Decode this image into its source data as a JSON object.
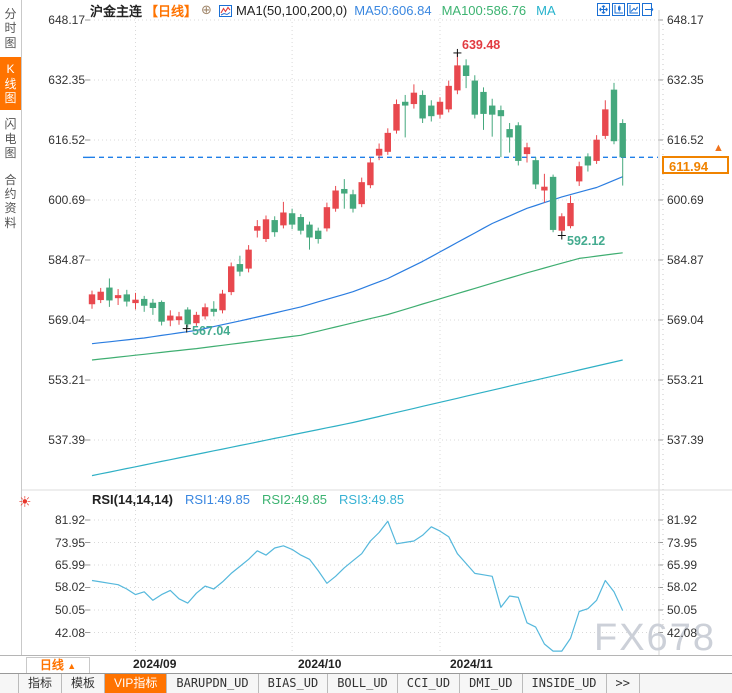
{
  "header": {
    "symbol": "沪金主连",
    "period_tag": "【日线】",
    "plus_icon": "⊕",
    "ma_group": "MA1(50,100,200,0)",
    "ma_values": [
      {
        "label": "MA50:606.84",
        "color": "#3a87e0"
      },
      {
        "label": "MA100:586.76",
        "color": "#3cb371"
      },
      {
        "label": "MA",
        "color": "#26b3cd"
      }
    ]
  },
  "sidebar": {
    "items": [
      {
        "label": "分时图",
        "active": false
      },
      {
        "label": "K线图",
        "active": true
      },
      {
        "label": "闪电图",
        "active": false
      },
      {
        "label": "合约资料",
        "active": false
      }
    ]
  },
  "toolbar_icons": [
    "pan-icon",
    "axis-candle-icon",
    "axis-trend-icon",
    "exit-chart-icon"
  ],
  "main_axis": {
    "labels": [
      "648.17",
      "632.35",
      "616.52",
      "600.69",
      "584.87",
      "569.04",
      "553.21",
      "537.39"
    ]
  },
  "rsi": {
    "title": "RSI(14,14,14)",
    "values": [
      {
        "label": "RSI1:49.85",
        "color": "#3a87e0"
      },
      {
        "label": "RSI2:49.85",
        "color": "#3cb371"
      },
      {
        "label": "RSI3:49.85",
        "color": "#38b2d4"
      }
    ],
    "axis_labels": [
      "81.92",
      "73.95",
      "65.99",
      "58.02",
      "50.05",
      "42.08"
    ]
  },
  "price_marker": {
    "value": "611.94",
    "arrow": "▲"
  },
  "chart_labels": {
    "high": "639.48",
    "low": "567.04",
    "swing_low": "592.12"
  },
  "xaxis": {
    "period_label": "日线",
    "period_arrow": "▲",
    "dates": [
      "2024/09",
      "2024/10",
      "2024/11"
    ]
  },
  "tabs": [
    {
      "label": "指标",
      "active": false
    },
    {
      "label": "模板",
      "active": false
    },
    {
      "label": "VIP指标",
      "active": true
    },
    {
      "label": "BARUPDN_UD",
      "active": false
    },
    {
      "label": "BIAS_UD",
      "active": false
    },
    {
      "label": "BOLL_UD",
      "active": false
    },
    {
      "label": "CCI_UD",
      "active": false
    },
    {
      "label": "DMI_UD",
      "active": false
    },
    {
      "label": "INSIDE_UD",
      "active": false
    },
    {
      "label": ">>",
      "active": false
    }
  ],
  "watermark": "FX678",
  "colors": {
    "up": "#e8484e",
    "down": "#44a87d",
    "ma50": "#2b7de0",
    "ma100": "#3fae71",
    "ma200": "#2fb0c5",
    "rsi_line": "#55b8dc",
    "dashed_price": "#1f7fe8",
    "accent_orange": "#ff7300",
    "high_label": "#e23b41",
    "low_label": "#44ab8f",
    "grid": "#d9d9d9",
    "marker_box": "#f08300"
  },
  "chart_data": {
    "type": "candlestick",
    "title": "沪金主连 日线 (Shanghai Gold continuous, daily)",
    "price_axis_ticks": [
      648.17,
      632.35,
      616.52,
      600.69,
      584.87,
      569.04,
      553.21,
      537.39
    ],
    "rsi_axis_ticks": [
      81.92,
      73.95,
      65.99,
      58.02,
      50.05,
      42.08
    ],
    "x_gridline_labels": [
      "2024/09",
      "2024/10",
      "2024/11"
    ],
    "month_gridline_indices": [
      5,
      23,
      40
    ],
    "current_price": 611.94,
    "high_label": {
      "value": 639.48,
      "index": 42
    },
    "low_label": {
      "value": 567.04,
      "index": 11
    },
    "swing_low_label": {
      "value": 592.12,
      "index": 54
    },
    "candles_ohlc": [
      [
        573.2,
        576.8,
        572.0,
        575.8
      ],
      [
        574.3,
        577.5,
        573.5,
        576.5
      ],
      [
        577.6,
        580.0,
        572.5,
        574.2
      ],
      [
        574.8,
        577.2,
        573.0,
        575.6
      ],
      [
        575.8,
        577.0,
        572.6,
        573.9
      ],
      [
        573.5,
        576.2,
        571.8,
        574.4
      ],
      [
        574.6,
        575.4,
        571.2,
        572.8
      ],
      [
        573.6,
        574.6,
        570.4,
        572.2
      ],
      [
        573.8,
        574.2,
        567.6,
        568.6
      ],
      [
        568.9,
        571.6,
        567.4,
        570.2
      ],
      [
        569.0,
        571.2,
        567.8,
        570.0
      ],
      [
        571.8,
        572.4,
        567.04,
        567.9
      ],
      [
        568.2,
        571.2,
        567.5,
        570.4
      ],
      [
        570.0,
        573.4,
        569.2,
        572.4
      ],
      [
        572.0,
        574.0,
        570.0,
        571.2
      ],
      [
        571.6,
        577.0,
        570.8,
        576.0
      ],
      [
        576.4,
        584.2,
        575.6,
        583.2
      ],
      [
        583.8,
        586.0,
        580.6,
        581.8
      ],
      [
        582.6,
        588.8,
        581.6,
        587.6
      ],
      [
        592.6,
        595.4,
        590.8,
        593.8
      ],
      [
        590.4,
        596.6,
        589.6,
        595.6
      ],
      [
        595.4,
        596.4,
        591.0,
        592.2
      ],
      [
        594.0,
        600.2,
        593.2,
        597.4
      ],
      [
        597.2,
        598.4,
        593.0,
        594.2
      ],
      [
        596.2,
        597.0,
        591.6,
        592.6
      ],
      [
        594.2,
        595.0,
        587.6,
        590.8
      ],
      [
        592.6,
        593.4,
        589.2,
        590.4
      ],
      [
        593.2,
        600.0,
        592.4,
        598.8
      ],
      [
        598.4,
        604.4,
        597.6,
        603.2
      ],
      [
        603.6,
        606.2,
        598.4,
        602.4
      ],
      [
        602.2,
        603.4,
        597.4,
        598.4
      ],
      [
        599.6,
        606.6,
        598.8,
        605.4
      ],
      [
        604.6,
        611.8,
        603.8,
        610.6
      ],
      [
        612.4,
        615.6,
        611.2,
        614.2
      ],
      [
        613.4,
        619.6,
        612.6,
        618.4
      ],
      [
        619.0,
        627.2,
        618.2,
        626.0
      ],
      [
        626.6,
        628.4,
        617.2,
        625.6
      ],
      [
        626.0,
        631.2,
        624.8,
        629.0
      ],
      [
        628.4,
        629.6,
        621.0,
        622.2
      ],
      [
        625.6,
        627.0,
        621.4,
        622.8
      ],
      [
        623.2,
        627.8,
        622.2,
        626.6
      ],
      [
        624.6,
        632.2,
        623.8,
        630.8
      ],
      [
        629.6,
        639.48,
        628.6,
        636.2
      ],
      [
        636.2,
        637.8,
        630.2,
        633.4
      ],
      [
        632.2,
        633.6,
        622.2,
        623.2
      ],
      [
        629.2,
        630.4,
        619.2,
        623.4
      ],
      [
        625.6,
        627.4,
        617.4,
        623.2
      ],
      [
        624.4,
        625.6,
        612.0,
        622.8
      ],
      [
        619.4,
        621.0,
        613.2,
        617.2
      ],
      [
        620.4,
        621.2,
        609.8,
        611.0
      ],
      [
        612.8,
        615.8,
        610.6,
        614.6
      ],
      [
        611.2,
        612.0,
        603.6,
        604.8
      ],
      [
        603.2,
        607.6,
        600.0,
        604.2
      ],
      [
        606.8,
        607.4,
        592.2,
        592.8
      ],
      [
        592.6,
        597.2,
        592.12,
        596.4
      ],
      [
        593.8,
        601.8,
        593.2,
        599.9
      ],
      [
        605.6,
        610.8,
        604.4,
        609.6
      ],
      [
        612.2,
        613.0,
        608.2,
        609.8
      ],
      [
        611.0,
        617.8,
        610.2,
        616.6
      ],
      [
        617.6,
        627.0,
        616.8,
        624.6
      ],
      [
        629.8,
        631.6,
        615.4,
        616.2
      ],
      [
        621.0,
        622.0,
        604.5,
        611.94
      ]
    ],
    "ma_lines": [
      {
        "name": "MA50",
        "current": 606.84,
        "color": "#2b7de0",
        "anchors": [
          [
            0,
            562.8
          ],
          [
            6,
            564.3
          ],
          [
            12,
            566.3
          ],
          [
            18,
            569.3
          ],
          [
            24,
            572.5
          ],
          [
            30,
            576.5
          ],
          [
            34,
            580.0
          ],
          [
            38,
            584.5
          ],
          [
            42,
            589.5
          ],
          [
            46,
            594.5
          ],
          [
            50,
            598.5
          ],
          [
            54,
            601.5
          ],
          [
            58,
            604.0
          ],
          [
            61,
            606.84
          ]
        ]
      },
      {
        "name": "MA100",
        "current": 586.76,
        "color": "#3fae71",
        "anchors": [
          [
            0,
            558.5
          ],
          [
            12,
            561.5
          ],
          [
            24,
            565.0
          ],
          [
            34,
            570.5
          ],
          [
            42,
            576.0
          ],
          [
            50,
            581.5
          ],
          [
            56,
            585.3
          ],
          [
            61,
            586.76
          ]
        ]
      },
      {
        "name": "MA200",
        "current": 558.5,
        "color": "#2fb0c5",
        "anchors": [
          [
            0,
            528.0
          ],
          [
            15,
            535.0
          ],
          [
            30,
            542.0
          ],
          [
            45,
            550.0
          ],
          [
            61,
            558.5
          ]
        ]
      }
    ],
    "rsi_series": {
      "name": "RSI(14,14,14)",
      "current": 49.85,
      "color": "#55b8dc",
      "values": [
        60.5,
        60,
        59.5,
        59,
        57.5,
        55.5,
        56.5,
        53.5,
        55.5,
        57,
        54,
        52.5,
        56,
        58.5,
        57.5,
        60,
        63,
        65.5,
        68,
        71,
        69.5,
        72,
        72.8,
        71.5,
        69.5,
        68,
        64,
        59.5,
        62,
        65,
        67.5,
        70,
        74.5,
        77.5,
        81.5,
        73.5,
        74,
        74.5,
        76.5,
        79.5,
        78,
        76,
        70,
        66.5,
        63,
        62.5,
        62,
        51,
        55,
        54.5,
        45.5,
        44,
        38,
        35.5,
        35.5,
        40,
        49.5,
        50.5,
        53.5,
        60.5,
        56.5,
        49.85
      ]
    }
  }
}
